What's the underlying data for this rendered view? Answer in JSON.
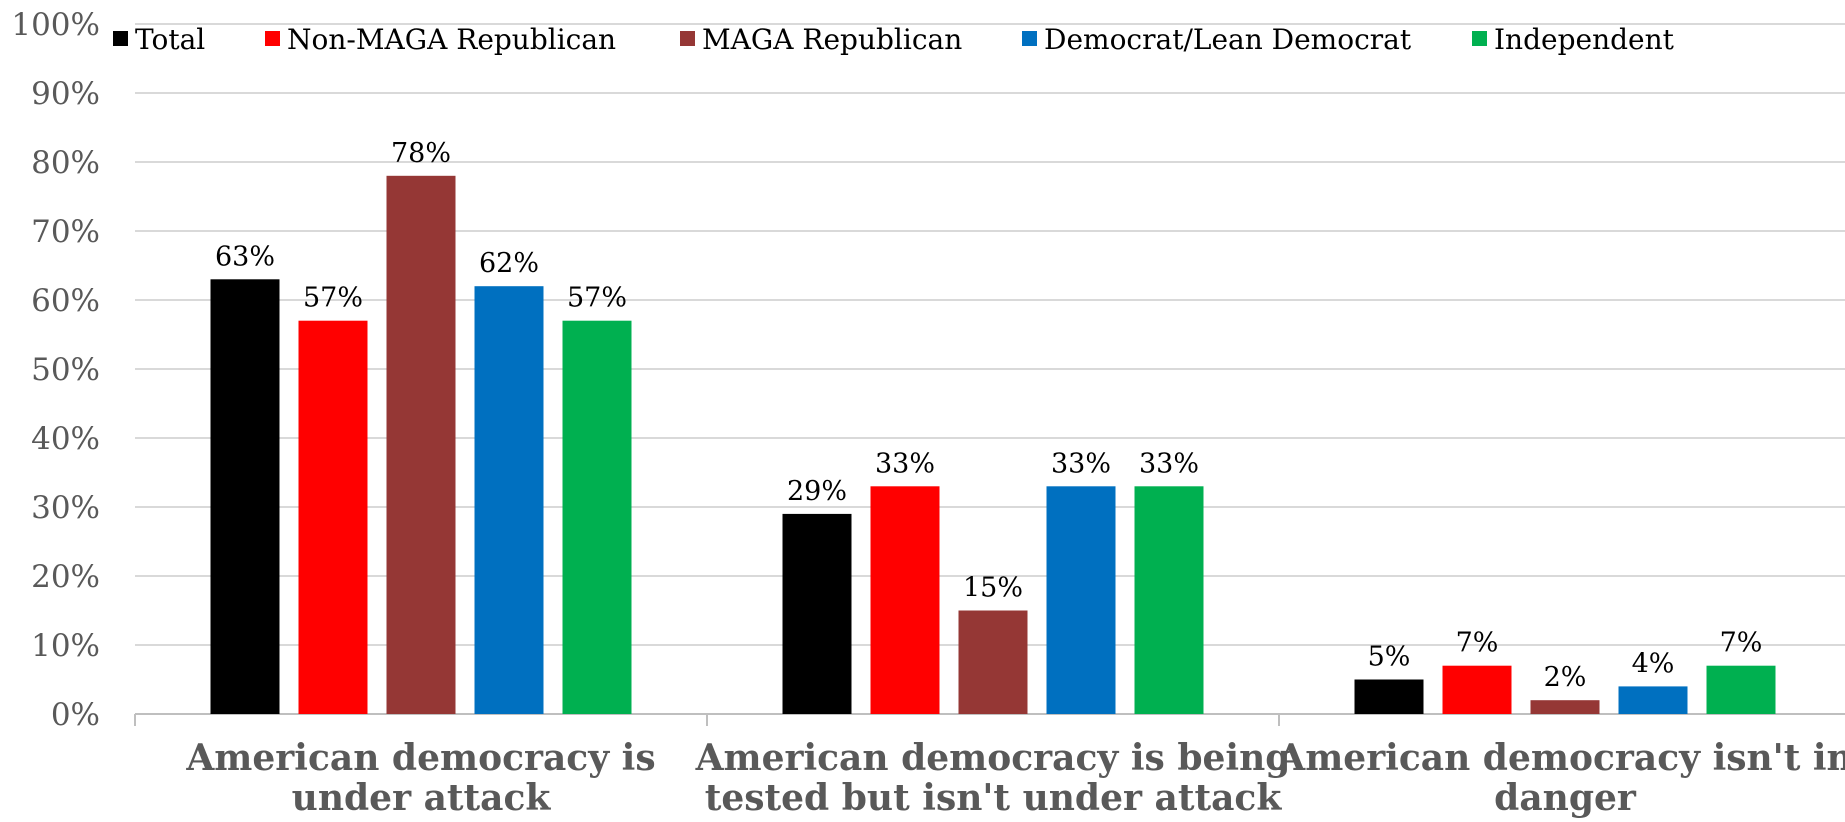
{
  "chart_data": {
    "type": "bar",
    "title": "",
    "xlabel": "",
    "ylabel": "",
    "ylim": [
      0,
      100
    ],
    "yticks": [
      0,
      10,
      20,
      30,
      40,
      50,
      60,
      70,
      80,
      90,
      100
    ],
    "tick_suffix": "%",
    "grid": true,
    "legend_position": "top",
    "categories": [
      "American democracy is under attack",
      "American democracy is being tested but isn't under attack",
      "American democracy isn't in danger"
    ],
    "category_lines": [
      [
        "American democracy is",
        "under attack"
      ],
      [
        "American democracy is being",
        "tested but isn't under attack"
      ],
      [
        "American democracy isn't in",
        "danger"
      ]
    ],
    "series": [
      {
        "name": "Total",
        "color": "#000000",
        "values": [
          63,
          29,
          5
        ]
      },
      {
        "name": "Non-MAGA Republican",
        "color": "#ff0000",
        "values": [
          57,
          33,
          7
        ]
      },
      {
        "name": "MAGA Republican",
        "color": "#953735",
        "values": [
          78,
          15,
          2
        ]
      },
      {
        "name": "Democrat/Lean Democrat",
        "color": "#0070c0",
        "values": [
          62,
          33,
          4
        ]
      },
      {
        "name": "Independent",
        "color": "#00b050",
        "values": [
          57,
          33,
          7
        ]
      }
    ]
  }
}
